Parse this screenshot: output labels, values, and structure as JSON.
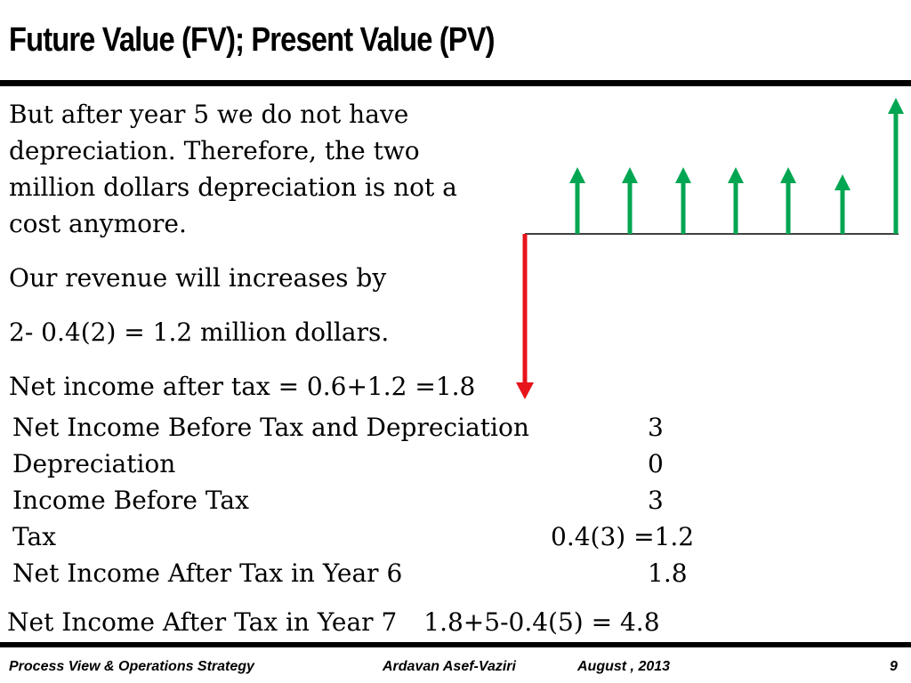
{
  "slide": {
    "title": "Future Value (FV); Present Value (PV)",
    "paragraph1_lines": [
      "But after year 5 we do not have",
      "depreciation. Therefore, the two",
      "million dollars depreciation is not a",
      "cost anymore."
    ],
    "revenue_line": "Our revenue will increases by",
    "revenue_calc": "2- 0.4(2) = 1.2 million dollars.",
    "net_income_line": "Net income after tax = 0.6+1.2 =1.8",
    "table": [
      {
        "label": "Net Income Before Tax and Depreciation",
        "value": "3"
      },
      {
        "label": "Depreciation",
        "value": "0"
      },
      {
        "label": "Income Before Tax",
        "value": "3"
      },
      {
        "label": "Tax",
        "value": "0.4(3) =1.2"
      },
      {
        "label": "Net Income After Tax in Year 6",
        "value": "1.8"
      }
    ],
    "year7_label": "Net Income After Tax in Year 7",
    "year7_calc": "1.8+5-0.4(5) = 4.8"
  },
  "cash_flow_diagram": {
    "outflow_color": "#e8141b",
    "inflow_color": "#00a651",
    "inflow_count": 7
  },
  "footer": {
    "course": "Process View & Operations Strategy",
    "author": "Ardavan Asef-Vaziri",
    "date": "August , 2013",
    "page_number": "9"
  }
}
